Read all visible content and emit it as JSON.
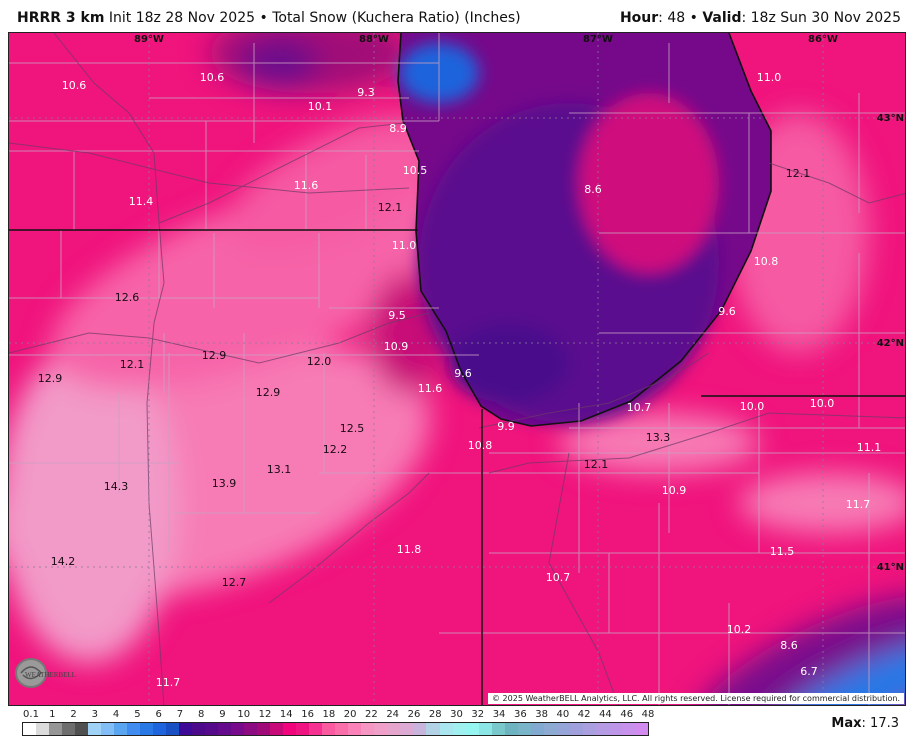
{
  "header": {
    "model": "HRRR 3 km",
    "init": "Init 18z 28 Nov 2025",
    "separator": "•",
    "product": "Total Snow (Kuchera Ratio) (Inches)",
    "hour_label": "Hour",
    "hour_value": ": 48",
    "valid_label": "Valid",
    "valid_value": ": 18z Sun 30 Nov 2025"
  },
  "map": {
    "longitude_labels": [
      "89°W",
      "88°W",
      "87°W",
      "86°W"
    ],
    "latitude_labels": [
      "43°N",
      "42°N",
      "41°N"
    ],
    "snow_values": [
      "10.6",
      "10.6",
      "10.1",
      "9.3",
      "8.9",
      "10.5",
      "11.6",
      "11.4",
      "12.1",
      "11.0",
      "12.6",
      "9.5",
      "10.9",
      "12.1",
      "12.9",
      "12.0",
      "12.9",
      "9.6",
      "11.6",
      "12.9",
      "12.5",
      "10.8",
      "9.9",
      "12.2",
      "13.1",
      "14.3",
      "13.9",
      "14.2",
      "11.8",
      "12.7",
      "11.7",
      "8.6",
      "12.1",
      "11.0",
      "10.8",
      "9.6",
      "10.7",
      "10.0",
      "10.0",
      "13.3",
      "11.1",
      "12.1",
      "10.9",
      "11.7",
      "11.5",
      "10.7",
      "10.2",
      "8.6",
      "6.7"
    ],
    "copyright": "© 2025 WeatherBELL Analytics, LLC. All rights reserved. License required for commercial distribution.",
    "logo_text": "WeatherBELL",
    "colors": {
      "snow_pink": "#f0147d",
      "light_pink": "#f77bb5",
      "lake_purple": "#55098c",
      "blue": "#1e64dc"
    }
  },
  "legend": {
    "labels": [
      "0.1",
      "1",
      "2",
      "3",
      "4",
      "5",
      "6",
      "7",
      "8",
      "9",
      "10",
      "12",
      "14",
      "16",
      "18",
      "20",
      "22",
      "24",
      "26",
      "28",
      "30",
      "32",
      "34",
      "36",
      "38",
      "40",
      "42",
      "44",
      "46",
      "48"
    ],
    "colors": [
      "#ffffff",
      "#dcdcdc",
      "#969696",
      "#6e6e6e",
      "#505050",
      "#a0d2f5",
      "#82bef5",
      "#5aa5f0",
      "#418cf0",
      "#2878e6",
      "#1e64dc",
      "#1950c3",
      "#3c0a96",
      "#4b0a8c",
      "#550a8c",
      "#640a8c",
      "#780a8c",
      "#8c0a82",
      "#a00a78",
      "#c80a78",
      "#f0057d",
      "#f01482",
      "#f53291",
      "#fa5aa0",
      "#fa6eaa",
      "#fa82b9",
      "#f596c3",
      "#f0a0c8",
      "#e6a5cd",
      "#dcaad2",
      "#c8b4dc",
      "#b4d2e6",
      "#aae6f0",
      "#a0f0f0",
      "#96f5f0",
      "#8ce6e6",
      "#78c8cc",
      "#6eb4c0",
      "#7ab4c8",
      "#82aad0",
      "#8caad2",
      "#96a5d7",
      "#a0a0dc",
      "#aaa0e0",
      "#b49be4",
      "#be96e8",
      "#c891ec",
      "#d28cf0"
    ],
    "max_label": "Max",
    "max_value": ": 17.3"
  }
}
